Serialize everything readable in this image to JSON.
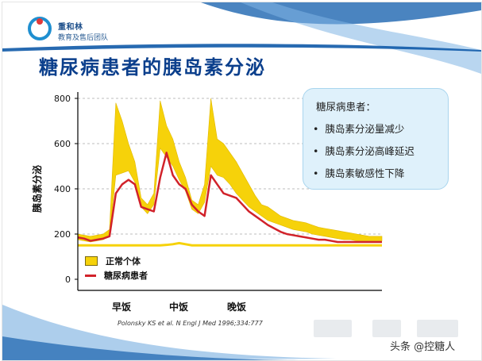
{
  "logo": {
    "name": "重和林",
    "subtitle": "教育及售后团队"
  },
  "slide_title": "糖尿病患者的胰岛素分泌",
  "info_box": {
    "heading": "糖尿病患者：",
    "items": [
      "胰岛素分泌量减少",
      "胰岛素分泌高峰延迟",
      "胰岛素敏感性下降"
    ]
  },
  "meals": [
    "早饭",
    "中饭",
    "晚饭"
  ],
  "citation": "Polonsky KS et al. N Engl J Med 1996;334:777",
  "watermark": "头条 @控糖人",
  "colors": {
    "title": "#0b3f8c",
    "band": "#f6d20a",
    "diabetic_line": "#d1222a",
    "axis": "#000000"
  },
  "chart_data": {
    "type": "line",
    "ylabel": "胰岛素分泌",
    "xlabel": "",
    "ylim": [
      0,
      800
    ],
    "yticks": [
      0,
      200,
      400,
      600,
      800
    ],
    "x_hours": [
      0,
      0.5,
      1,
      1.5,
      2,
      2.5,
      3,
      3.5,
      4,
      4.5,
      5,
      5.5,
      6,
      6.5,
      7,
      7.5,
      8,
      8.5,
      9,
      9.5,
      10,
      10.5,
      11,
      11.5,
      12,
      12.5,
      13,
      13.5,
      14,
      14.5,
      15,
      15.5,
      16,
      16.5,
      17,
      17.5,
      18,
      18.5,
      19,
      19.5,
      20,
      20.5,
      21,
      21.5,
      22,
      22.5,
      23,
      23.5,
      24
    ],
    "series": [
      {
        "name": "正常个体",
        "kind": "band",
        "upper": [
          200,
          195,
          190,
          195,
          200,
          220,
          780,
          700,
          600,
          520,
          360,
          330,
          380,
          790,
          680,
          620,
          520,
          450,
          350,
          330,
          420,
          800,
          620,
          600,
          560,
          520,
          470,
          420,
          370,
          330,
          320,
          300,
          280,
          270,
          260,
          255,
          250,
          240,
          230,
          225,
          220,
          215,
          210,
          205,
          200,
          195,
          190,
          190,
          190
        ],
        "lower": [
          175,
          170,
          165,
          170,
          175,
          190,
          460,
          470,
          480,
          430,
          320,
          290,
          330,
          580,
          540,
          500,
          440,
          390,
          310,
          290,
          340,
          500,
          460,
          450,
          420,
          380,
          350,
          320,
          300,
          280,
          260,
          250,
          240,
          230,
          220,
          215,
          210,
          200,
          195,
          190,
          185,
          180,
          175,
          175,
          170,
          170,
          170,
          170,
          170
        ]
      },
      {
        "name": "正常个体",
        "kind": "baseline",
        "values": [
          150,
          150,
          150,
          150,
          150,
          150,
          150,
          150,
          150,
          150,
          150,
          150,
          150,
          150,
          152,
          155,
          160,
          155,
          150,
          150,
          150,
          150,
          150,
          150,
          150,
          150,
          150,
          150,
          150,
          150,
          150,
          150,
          150,
          150,
          150,
          150,
          150,
          150,
          150,
          150,
          150,
          150,
          150,
          150,
          150,
          150,
          150,
          150,
          150
        ]
      },
      {
        "name": "糖尿病患者",
        "kind": "line",
        "values": [
          185,
          180,
          170,
          175,
          180,
          190,
          380,
          420,
          440,
          420,
          320,
          310,
          300,
          450,
          560,
          460,
          420,
          400,
          330,
          300,
          280,
          460,
          420,
          380,
          370,
          360,
          330,
          300,
          280,
          260,
          240,
          225,
          210,
          200,
          195,
          190,
          185,
          180,
          175,
          175,
          170,
          165,
          165,
          165,
          165,
          165,
          165,
          165,
          165
        ]
      }
    ],
    "legend": [
      "正常个体",
      "糖尿病患者"
    ],
    "legend_position": "bottom-left"
  }
}
